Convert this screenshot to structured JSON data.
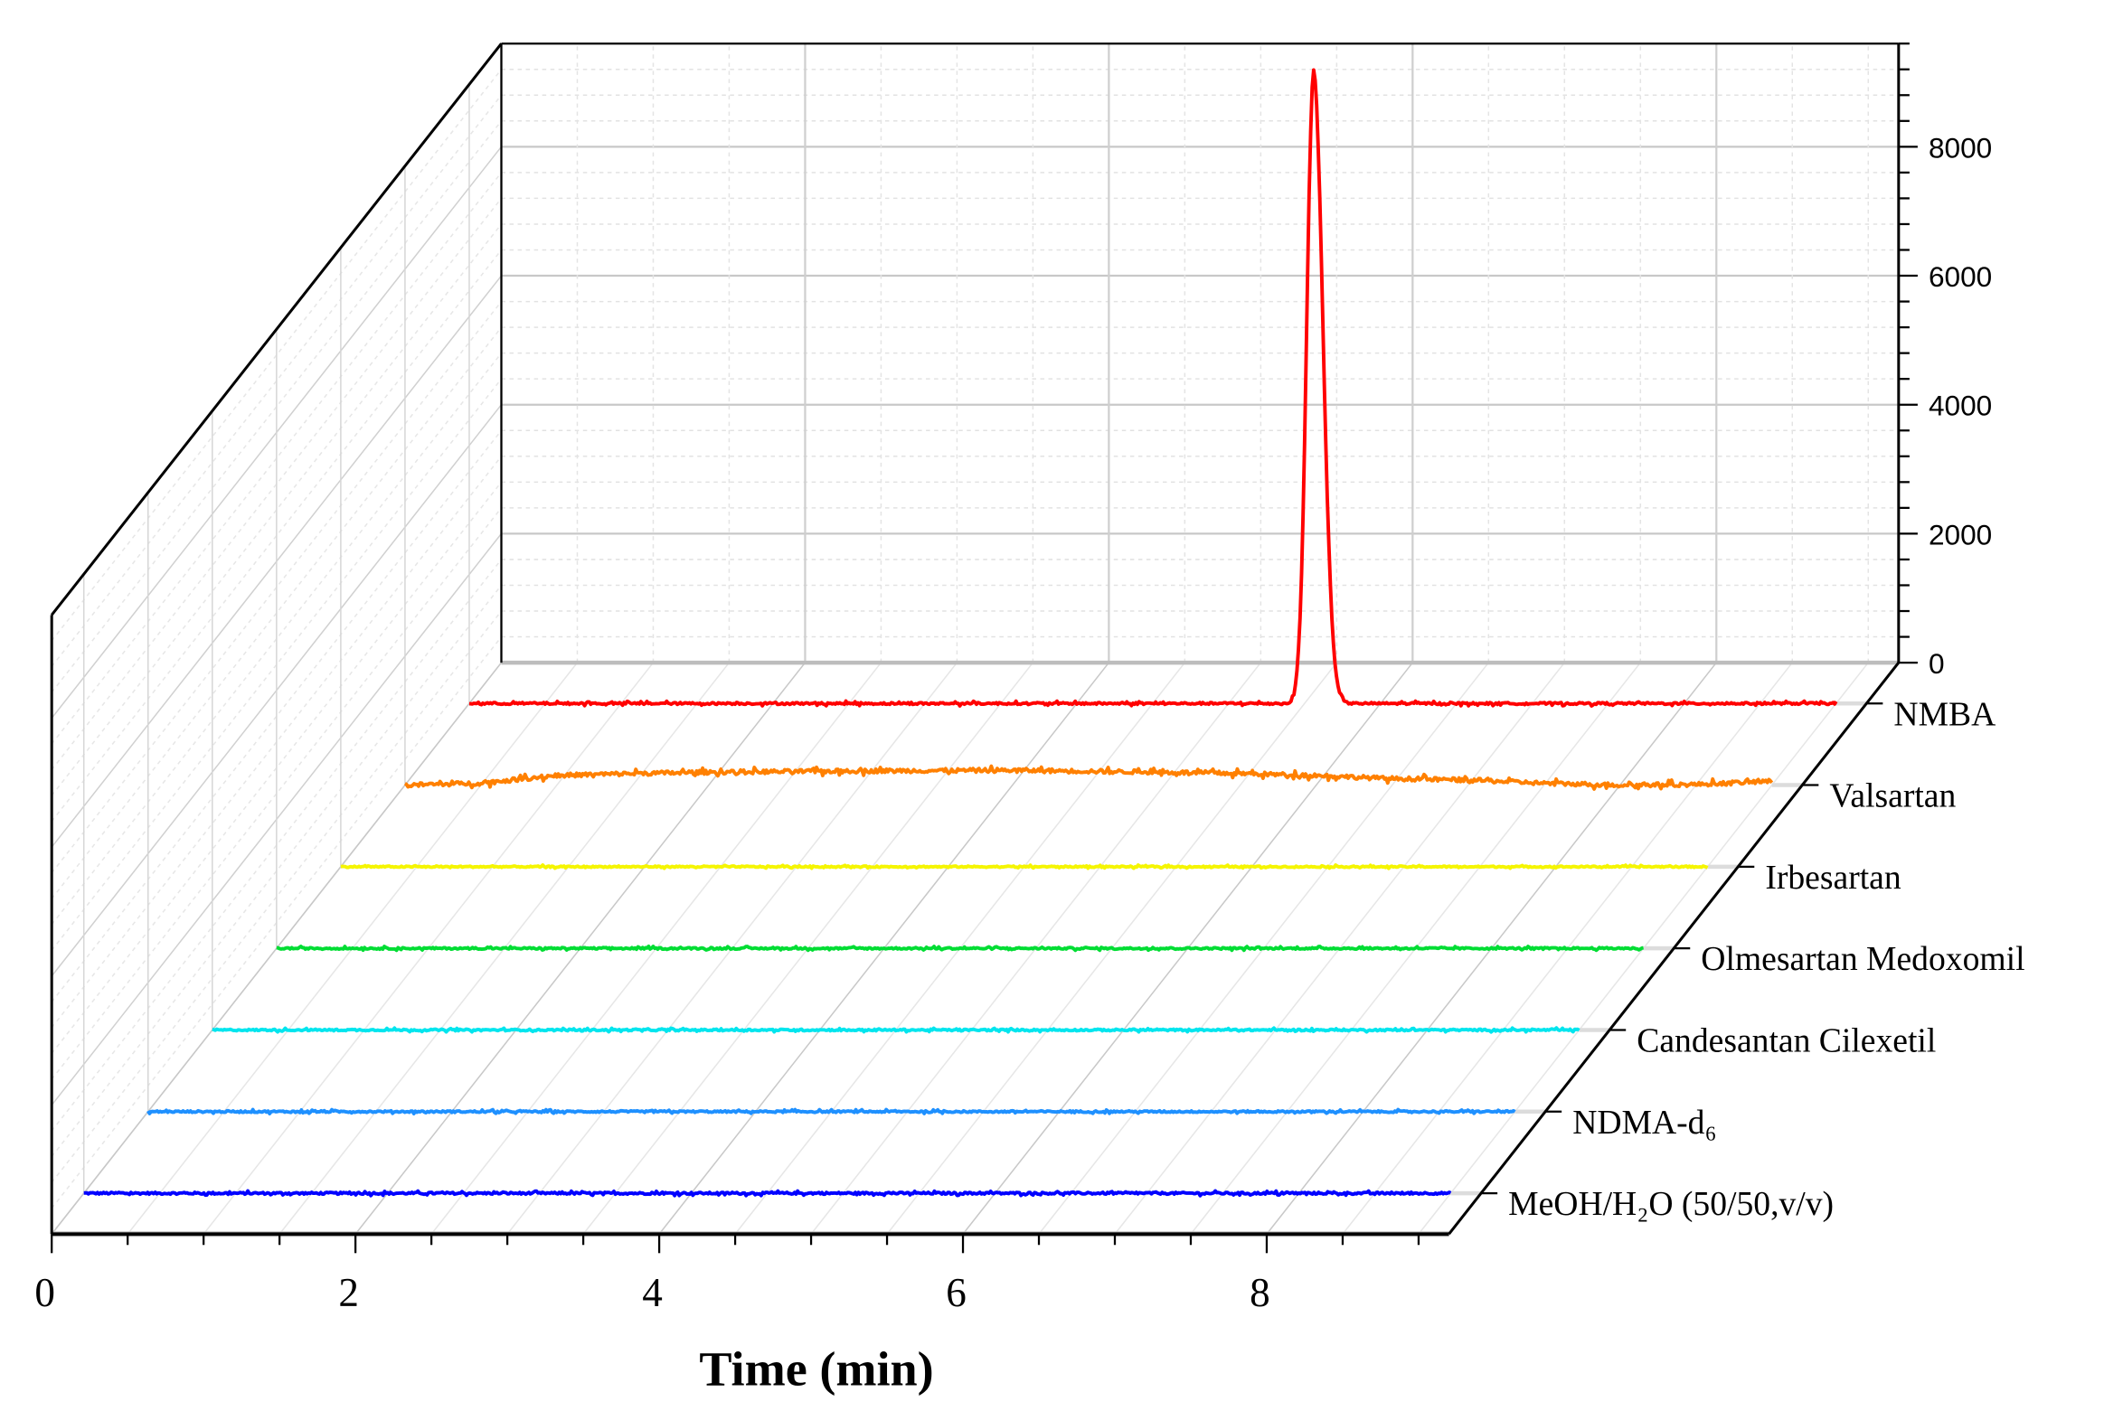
{
  "chart_data": {
    "type": "line",
    "subtype": "3d-waterfall",
    "title": "",
    "xlabel": "Time (min)",
    "ylabel": "",
    "xlim": [
      0,
      9.2
    ],
    "ylim": [
      0,
      9600
    ],
    "x_ticks": [
      "0",
      "2",
      "4",
      "6",
      "8"
    ],
    "y_ticks": [
      "0",
      "2000",
      "4000",
      "6000",
      "8000"
    ],
    "grid": true,
    "series": [
      {
        "name": "MeOH/H₂O (50/50,v/v)",
        "color": "#0000ff",
        "x_range": [
          0,
          9.0
        ],
        "baseline": 0,
        "noise": 30,
        "peaks": []
      },
      {
        "name": "NDMA-d₆",
        "color": "#1e90ff",
        "x_range": [
          0,
          9.0
        ],
        "baseline": 0,
        "noise": 25,
        "peaks": []
      },
      {
        "name": "Candesantan Cilexetil",
        "color": "#00e5ee",
        "x_range": [
          0,
          9.0
        ],
        "baseline": 0,
        "noise": 25,
        "peaks": []
      },
      {
        "name": "Olmesartan Medoxomil",
        "color": "#00dd33",
        "x_range": [
          0,
          9.0
        ],
        "baseline": 0,
        "noise": 25,
        "peaks": []
      },
      {
        "name": "Irbesartan",
        "color": "#f5f500",
        "x_range": [
          0,
          9.0
        ],
        "baseline": 0,
        "noise": 20,
        "peaks": []
      },
      {
        "name": "Valsartan",
        "color": "#ff8000",
        "x_range": [
          0,
          9.0
        ],
        "noise": 60,
        "x": [
          0,
          0.5,
          1,
          1.5,
          2,
          3,
          4,
          5,
          5.5,
          6,
          6.5,
          7,
          7.5,
          8,
          8.5,
          9
        ],
        "y": [
          0,
          30,
          150,
          180,
          200,
          220,
          230,
          200,
          180,
          150,
          100,
          80,
          30,
          0,
          10,
          60
        ],
        "peaks": []
      },
      {
        "name": "NMBA",
        "color": "#ff0000",
        "x_range": [
          0,
          9.0
        ],
        "baseline": 0,
        "noise": 30,
        "peaks": [
          {
            "time": 5.56,
            "height": 9800
          }
        ]
      }
    ]
  }
}
